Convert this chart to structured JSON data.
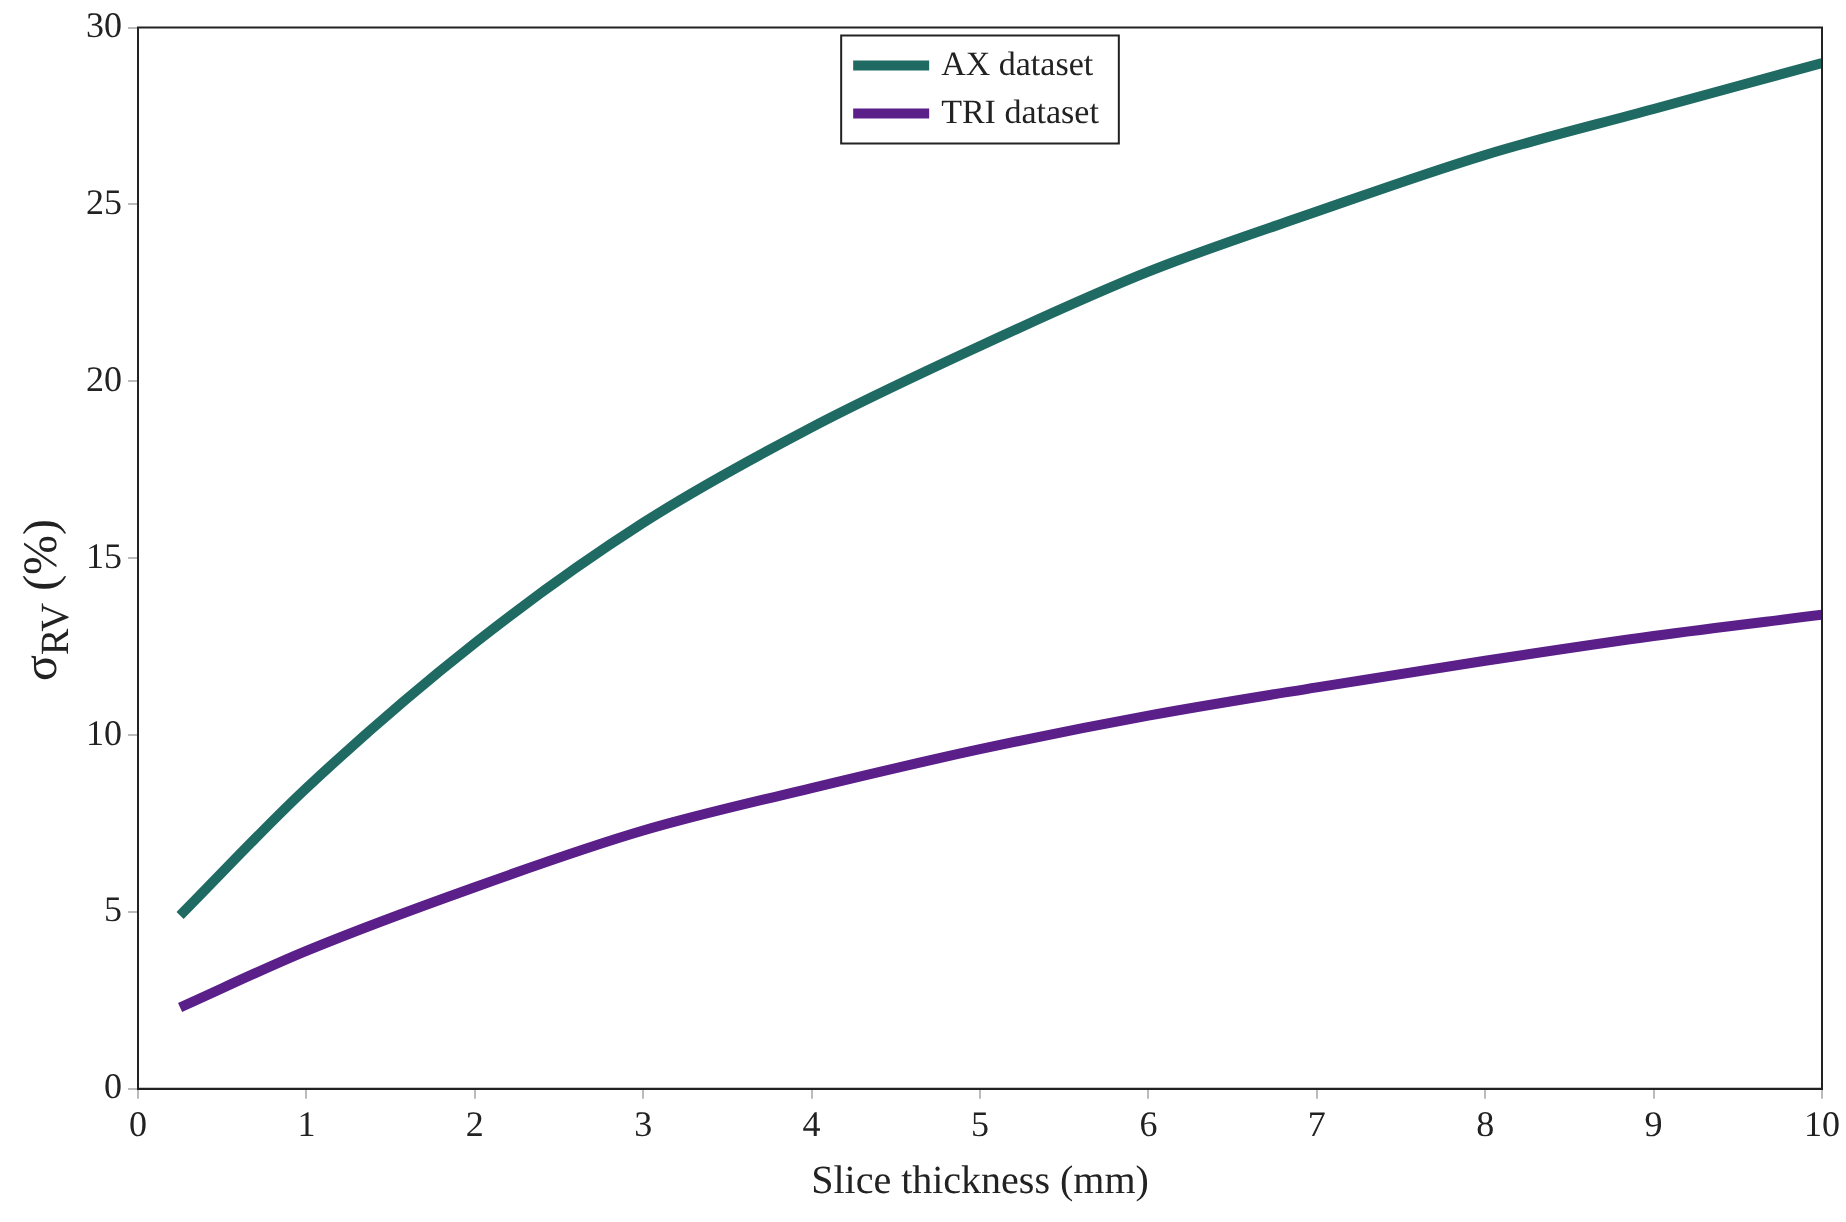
{
  "chart_data": {
    "type": "line",
    "xlabel": "Slice thickness (mm)",
    "ylabel": "σ$_{RV}$ (%)",
    "xlim": [
      0,
      10
    ],
    "xticks": [
      0,
      1,
      2,
      3,
      4,
      5,
      6,
      7,
      8,
      9,
      10
    ],
    "ylim": [
      0,
      30
    ],
    "yticks": [
      0,
      5,
      10,
      15,
      20,
      25,
      30
    ],
    "grid": false,
    "legend": "top",
    "marker": "none",
    "line_style": "solid",
    "x": [
      0.25,
      1,
      2,
      3,
      4,
      5,
      6,
      7,
      8,
      9,
      10
    ],
    "series": [
      {
        "name": "AX dataset",
        "color": "#1f6b63",
        "values": [
          4.9,
          8.5,
          12.6,
          16.0,
          18.7,
          21.0,
          23.1,
          24.8,
          26.4,
          27.7,
          29.0
        ]
      },
      {
        "name": "TRI dataset",
        "color": "#5b1f8a",
        "values": [
          2.3,
          3.9,
          5.7,
          7.3,
          8.5,
          9.6,
          10.55,
          11.35,
          12.1,
          12.8,
          13.4
        ]
      }
    ]
  }
}
